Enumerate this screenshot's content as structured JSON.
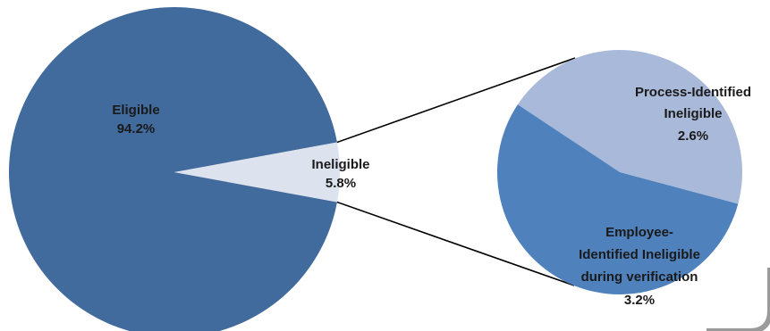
{
  "chart_data": {
    "type": "pie",
    "title": "",
    "slices": [
      {
        "label": "Eligible",
        "value": 94.2,
        "value_label": "94.2%",
        "color": "#416a9d"
      },
      {
        "label": "Ineligible",
        "value": 5.8,
        "value_label": "5.8%",
        "color": "#dde2ef"
      }
    ],
    "breakout": {
      "type": "pie",
      "of_slice": "Ineligible",
      "slices": [
        {
          "label_lines": [
            "Process-Identified",
            "Ineligible"
          ],
          "value": 2.6,
          "value_label": "2.6%",
          "color": "#a9b9d9"
        },
        {
          "label_lines": [
            "Employee-",
            "Identified Ineligible",
            "during verification"
          ],
          "value": 3.2,
          "value_label": "3.2%",
          "color": "#4f81bd"
        }
      ]
    },
    "legend": "none"
  }
}
